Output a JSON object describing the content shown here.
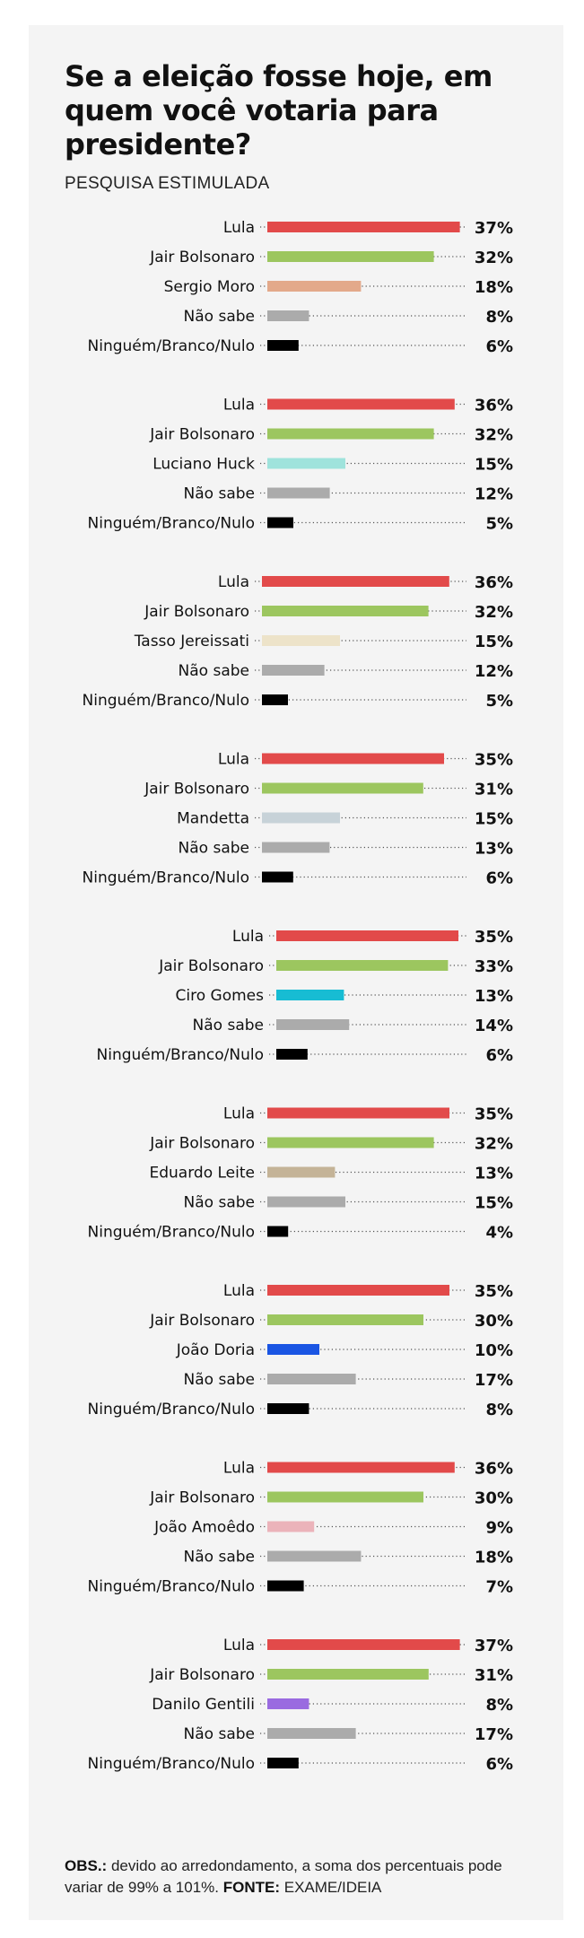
{
  "title": "Se a eleição fosse hoje, em quem você votaria para presidente?",
  "subtitle": "PESQUISA ESTIMULADA",
  "footnote": {
    "obs_label": "OBS.:",
    "obs_text": "devido ao arredondamento, a soma dos percentuais pode variar de 99% a 101%.",
    "source_label": "FONTE:",
    "source_text": "EXAME/IDEIA"
  },
  "colors": {
    "lula": "#e24a4a",
    "bolsonaro": "#9cc65f",
    "nao_sabe": "#ababab",
    "nulo": "#000000"
  },
  "chart_data": [
    {
      "type": "bar",
      "orientation": "horizontal",
      "categories": [
        "Lula",
        "Jair Bolsonaro",
        "Sergio Moro",
        "Não sabe",
        "Ninguém/Branco/Nulo"
      ],
      "values": [
        37,
        32,
        18,
        8,
        6
      ],
      "labels": [
        "37%",
        "32%",
        "18%",
        "8%",
        "6%"
      ],
      "colors": [
        "#e24a4a",
        "#9cc65f",
        "#e3a98a",
        "#ababab",
        "#000000"
      ]
    },
    {
      "type": "bar",
      "orientation": "horizontal",
      "categories": [
        "Lula",
        "Jair Bolsonaro",
        "Luciano Huck",
        "Não sabe",
        "Ninguém/Branco/Nulo"
      ],
      "values": [
        36,
        32,
        15,
        12,
        5
      ],
      "labels": [
        "36%",
        "32%",
        "15%",
        "12%",
        "5%"
      ],
      "colors": [
        "#e24a4a",
        "#9cc65f",
        "#9fe3dc",
        "#ababab",
        "#000000"
      ]
    },
    {
      "type": "bar",
      "orientation": "horizontal",
      "categories": [
        "Lula",
        "Jair Bolsonaro",
        "Tasso Jereissati",
        "Não sabe",
        "Ninguém/Branco/Nulo"
      ],
      "values": [
        36,
        32,
        15,
        12,
        5
      ],
      "labels": [
        "36%",
        "32%",
        "15%",
        "12%",
        "5%"
      ],
      "colors": [
        "#e24a4a",
        "#9cc65f",
        "#ede3c9",
        "#ababab",
        "#000000"
      ]
    },
    {
      "type": "bar",
      "orientation": "horizontal",
      "categories": [
        "Lula",
        "Jair Bolsonaro",
        "Mandetta",
        "Não sabe",
        "Ninguém/Branco/Nulo"
      ],
      "values": [
        35,
        31,
        15,
        13,
        6
      ],
      "labels": [
        "35%",
        "31%",
        "15%",
        "13%",
        "6%"
      ],
      "colors": [
        "#e24a4a",
        "#9cc65f",
        "#c7d2d8",
        "#ababab",
        "#000000"
      ]
    },
    {
      "type": "bar",
      "orientation": "horizontal",
      "categories": [
        "Lula",
        "Jair Bolsonaro",
        "Ciro Gomes",
        "Não sabe",
        "Ninguém/Branco/Nulo"
      ],
      "values": [
        35,
        33,
        13,
        14,
        6
      ],
      "labels": [
        "35%",
        "33%",
        "13%",
        "14%",
        "6%"
      ],
      "colors": [
        "#e24a4a",
        "#9cc65f",
        "#17bcd3",
        "#ababab",
        "#000000"
      ]
    },
    {
      "type": "bar",
      "orientation": "horizontal",
      "categories": [
        "Lula",
        "Jair Bolsonaro",
        "Eduardo Leite",
        "Não sabe",
        "Ninguém/Branco/Nulo"
      ],
      "values": [
        35,
        32,
        13,
        15,
        4
      ],
      "labels": [
        "35%",
        "32%",
        "13%",
        "15%",
        "4%"
      ],
      "colors": [
        "#e24a4a",
        "#9cc65f",
        "#c4b397",
        "#ababab",
        "#000000"
      ]
    },
    {
      "type": "bar",
      "orientation": "horizontal",
      "categories": [
        "Lula",
        "Jair Bolsonaro",
        "João Doria",
        "Não sabe",
        "Ninguém/Branco/Nulo"
      ],
      "values": [
        35,
        30,
        10,
        17,
        8
      ],
      "labels": [
        "35%",
        "30%",
        "10%",
        "17%",
        "8%"
      ],
      "colors": [
        "#e24a4a",
        "#9cc65f",
        "#1a55e3",
        "#ababab",
        "#000000"
      ]
    },
    {
      "type": "bar",
      "orientation": "horizontal",
      "categories": [
        "Lula",
        "Jair Bolsonaro",
        "João Amoêdo",
        "Não sabe",
        "Ninguém/Branco/Nulo"
      ],
      "values": [
        36,
        30,
        9,
        18,
        7
      ],
      "labels": [
        "36%",
        "30%",
        "9%",
        "18%",
        "7%"
      ],
      "colors": [
        "#e24a4a",
        "#9cc65f",
        "#ebb3ba",
        "#ababab",
        "#000000"
      ]
    },
    {
      "type": "bar",
      "orientation": "horizontal",
      "categories": [
        "Lula",
        "Jair Bolsonaro",
        "Danilo Gentili",
        "Não sabe",
        "Ninguém/Branco/Nulo"
      ],
      "values": [
        37,
        31,
        8,
        17,
        6
      ],
      "labels": [
        "37%",
        "31%",
        "8%",
        "17%",
        "6%"
      ],
      "colors": [
        "#e24a4a",
        "#9cc65f",
        "#9a6be0",
        "#ababab",
        "#000000"
      ]
    }
  ]
}
